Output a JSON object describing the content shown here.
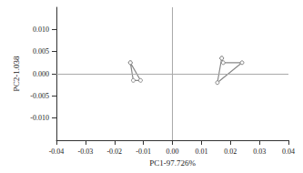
{
  "chart_data": {
    "type": "scatter",
    "x_label": "PC1-97.726%",
    "y_label": "PC2-1.038",
    "xlim": [
      -0.04,
      0.04
    ],
    "xticks": [
      -0.04,
      -0.03,
      -0.02,
      -0.01,
      {
        "value": 0,
        "label": "0.00"
      },
      0.01,
      0.02,
      0.03,
      0.04
    ],
    "ylim": [
      -0.015,
      0.015
    ],
    "yticks": [
      {
        "value": -0.01,
        "label": "-0.010"
      },
      -0.005,
      {
        "value": 0,
        "label": "0.000"
      },
      0.005,
      {
        "value": 0.01,
        "label": "0.010"
      }
    ],
    "grid": false,
    "series": [
      {
        "color": "#888888",
        "marker": "circle",
        "line_style": "solid",
        "x": [
          -0.0145,
          -0.011,
          -0.0135,
          -0.0145
        ],
        "values": [
          0.0025,
          -0.0015,
          -0.0015,
          0.0025
        ]
      },
      {
        "color": "#888888",
        "marker": "circle",
        "line_style": "solid",
        "x": [
          0.017,
          0.0175,
          0.024,
          0.0155,
          0.017
        ],
        "values": [
          0.0035,
          0.0025,
          0.0025,
          -0.002,
          0.0035
        ]
      }
    ]
  }
}
